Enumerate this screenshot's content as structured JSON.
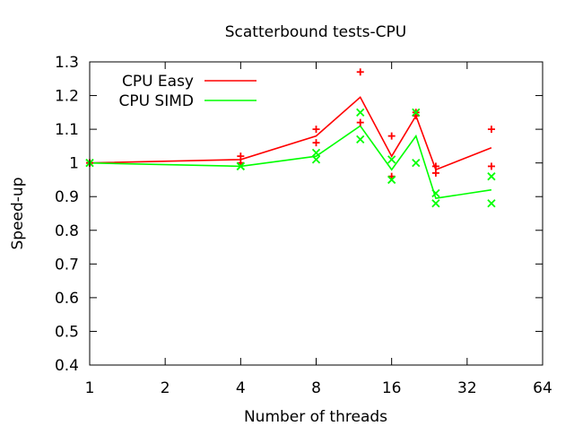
{
  "chart_data": {
    "type": "line",
    "title": "Scatterbound tests-CPU",
    "xlabel": "Number of threads",
    "ylabel": "Speed-up",
    "x_scale": "log2",
    "xlim": [
      1,
      64
    ],
    "ylim": [
      0.4,
      1.3
    ],
    "x_ticks": [
      {
        "value": 1,
        "label": "1"
      },
      {
        "value": 2,
        "label": "2"
      },
      {
        "value": 4,
        "label": "4"
      },
      {
        "value": 8,
        "label": "8"
      },
      {
        "value": 16,
        "label": "16"
      },
      {
        "value": 32,
        "label": "32"
      },
      {
        "value": 64,
        "label": "64"
      }
    ],
    "y_ticks": [
      {
        "value": 0.4,
        "label": "0.4"
      },
      {
        "value": 0.5,
        "label": "0.5"
      },
      {
        "value": 0.6,
        "label": "0.6"
      },
      {
        "value": 0.7,
        "label": "0.7"
      },
      {
        "value": 0.8,
        "label": "0.8"
      },
      {
        "value": 0.9,
        "label": "0.9"
      },
      {
        "value": 1.0,
        "label": "1"
      },
      {
        "value": 1.1,
        "label": "1.1"
      },
      {
        "value": 1.2,
        "label": "1.2"
      },
      {
        "value": 1.3,
        "label": "1.3"
      }
    ],
    "grid": false,
    "legend": "top-left",
    "series": [
      {
        "name": "CPU Easy",
        "color": "#ff0000",
        "marker": "plus",
        "line": [
          [
            1,
            1.0
          ],
          [
            4,
            1.01
          ],
          [
            8,
            1.08
          ],
          [
            12,
            1.195
          ],
          [
            16,
            1.02
          ],
          [
            20,
            1.14
          ],
          [
            24,
            0.98
          ],
          [
            40,
            1.045
          ]
        ],
        "points": [
          [
            1,
            1.0
          ],
          [
            1,
            1.0
          ],
          [
            4,
            1.02
          ],
          [
            4,
            1.0
          ],
          [
            8,
            1.1
          ],
          [
            8,
            1.06
          ],
          [
            12,
            1.27
          ],
          [
            12,
            1.12
          ],
          [
            16,
            1.08
          ],
          [
            16,
            0.96
          ],
          [
            20,
            1.14
          ],
          [
            20,
            1.15
          ],
          [
            24,
            0.99
          ],
          [
            24,
            0.97
          ],
          [
            40,
            1.1
          ],
          [
            40,
            0.99
          ]
        ]
      },
      {
        "name": "CPU SIMD",
        "color": "#00ff00",
        "marker": "cross",
        "line": [
          [
            1,
            1.0
          ],
          [
            4,
            0.99
          ],
          [
            8,
            1.02
          ],
          [
            12,
            1.11
          ],
          [
            16,
            0.98
          ],
          [
            20,
            1.08
          ],
          [
            24,
            0.895
          ],
          [
            40,
            0.92
          ]
        ],
        "points": [
          [
            1,
            1.0
          ],
          [
            1,
            1.0
          ],
          [
            4,
            0.99
          ],
          [
            4,
            0.99
          ],
          [
            8,
            1.03
          ],
          [
            8,
            1.01
          ],
          [
            12,
            1.15
          ],
          [
            12,
            1.07
          ],
          [
            16,
            1.01
          ],
          [
            16,
            0.95
          ],
          [
            20,
            1.15
          ],
          [
            20,
            1.0
          ],
          [
            24,
            0.91
          ],
          [
            24,
            0.88
          ],
          [
            40,
            0.96
          ],
          [
            40,
            0.88
          ]
        ]
      }
    ]
  }
}
